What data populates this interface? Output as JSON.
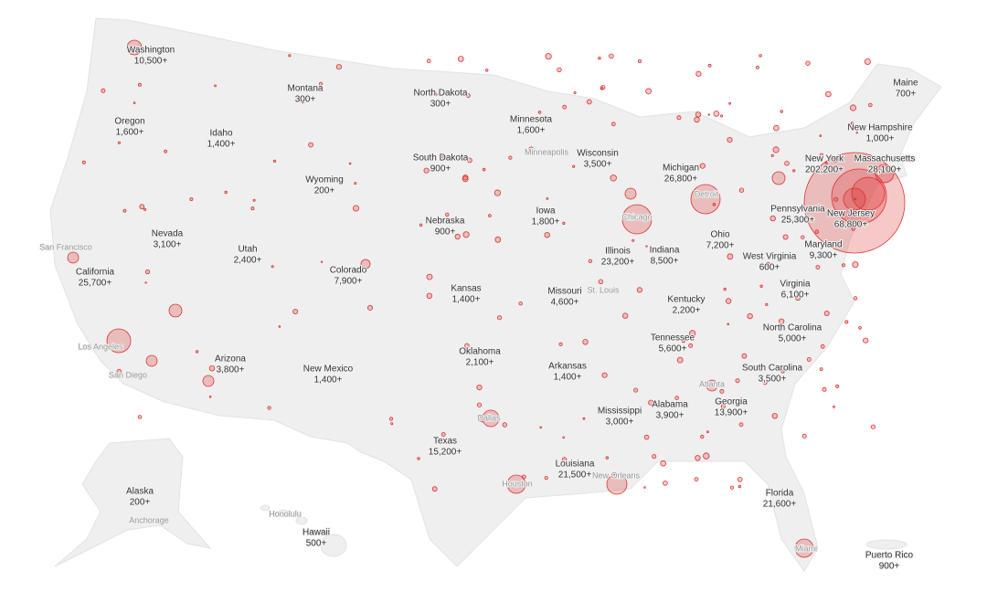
{
  "states": [
    {
      "name": "Washington",
      "count": "10,500+"
    },
    {
      "name": "Oregon",
      "count": "1,600+"
    },
    {
      "name": "Idaho",
      "count": "1,400+"
    },
    {
      "name": "Montana",
      "count": "300+"
    },
    {
      "name": "North Dakota",
      "count": "300+"
    },
    {
      "name": "Minnesota",
      "count": "1,600+"
    },
    {
      "name": "Wisconsin",
      "count": "3,500+"
    },
    {
      "name": "Michigan",
      "count": "26,800+"
    },
    {
      "name": "Maine",
      "count": "700+"
    },
    {
      "name": "New Hampshire",
      "count": "1,000+"
    },
    {
      "name": "Massachusetts",
      "count": "28,100+"
    },
    {
      "name": "New York",
      "count": "202,200+"
    },
    {
      "name": "Pennsylvania",
      "count": "25,300+"
    },
    {
      "name": "New Jersey",
      "count": "68,800+"
    },
    {
      "name": "South Dakota",
      "count": "900+"
    },
    {
      "name": "Wyoming",
      "count": "200+"
    },
    {
      "name": "Iowa",
      "count": "1,800+"
    },
    {
      "name": "Nebraska",
      "count": "900+"
    },
    {
      "name": "Nevada",
      "count": "3,100+"
    },
    {
      "name": "Utah",
      "count": "2,400+"
    },
    {
      "name": "Colorado",
      "count": "7,900+"
    },
    {
      "name": "California",
      "count": "25,700+"
    },
    {
      "name": "Illinois",
      "count": "23,200+"
    },
    {
      "name": "Indiana",
      "count": "8,500+"
    },
    {
      "name": "Ohio",
      "count": "7,200+"
    },
    {
      "name": "West Virginia",
      "count": "600+"
    },
    {
      "name": "Maryland",
      "count": "9,300+"
    },
    {
      "name": "Virginia",
      "count": "6,100+"
    },
    {
      "name": "Kansas",
      "count": "1,400+"
    },
    {
      "name": "Missouri",
      "count": "4,600+"
    },
    {
      "name": "Kentucky",
      "count": "2,200+"
    },
    {
      "name": "North Carolina",
      "count": "5,000+"
    },
    {
      "name": "Tennessee",
      "count": "5,600+"
    },
    {
      "name": "Oklahoma",
      "count": "2,100+"
    },
    {
      "name": "Arkansas",
      "count": "1,400+"
    },
    {
      "name": "South Carolina",
      "count": "3,500+"
    },
    {
      "name": "Arizona",
      "count": "3,800+"
    },
    {
      "name": "New Mexico",
      "count": "1,400+"
    },
    {
      "name": "Georgia",
      "count": "13,900+"
    },
    {
      "name": "Alabama",
      "count": "3,900+"
    },
    {
      "name": "Mississippi",
      "count": "3,000+"
    },
    {
      "name": "Texas",
      "count": "15,200+"
    },
    {
      "name": "Louisiana",
      "count": "21,500+"
    },
    {
      "name": "Florida",
      "count": "21,600+"
    },
    {
      "name": "Alaska",
      "count": "200+"
    },
    {
      "name": "Hawaii",
      "count": "500+"
    },
    {
      "name": "Puerto Rico",
      "count": "900+"
    }
  ],
  "cities": [
    "San Francisco",
    "Los Angeles",
    "San Diego",
    "Minneapolis",
    "Chicago",
    "Detroit",
    "St. Louis",
    "Atlanta",
    "Dallas",
    "Houston",
    "New Orleans",
    "Miami",
    "Anchorage",
    "Honolulu"
  ]
}
